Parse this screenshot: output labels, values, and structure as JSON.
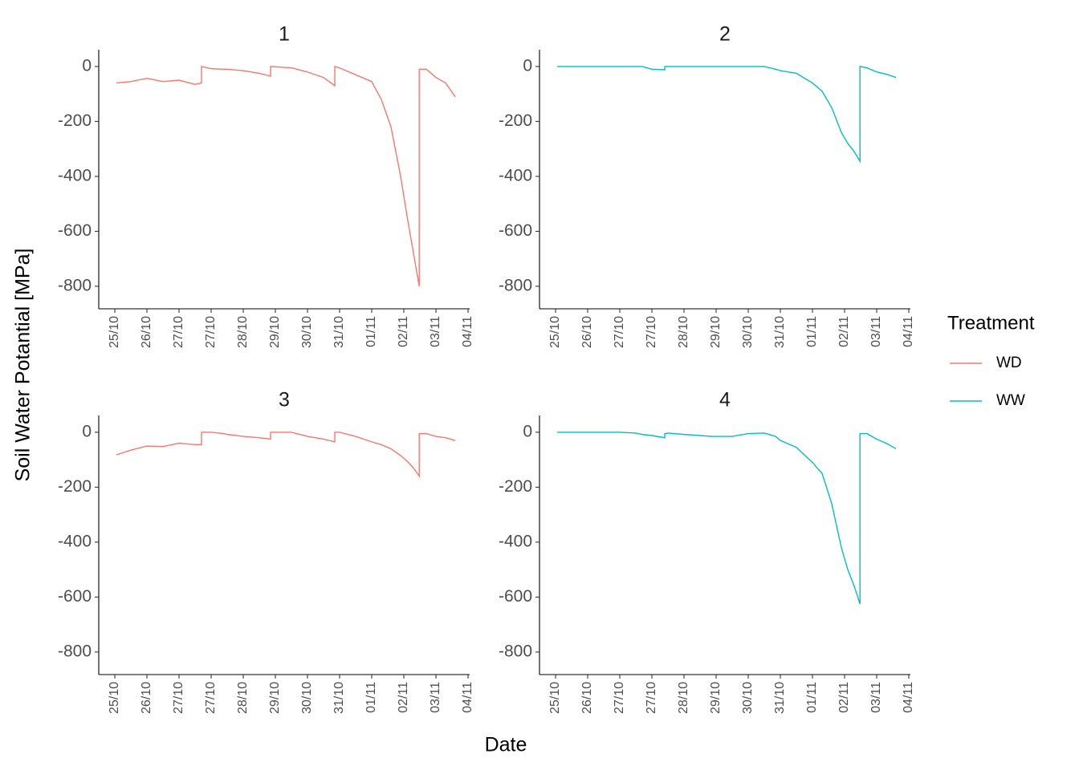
{
  "chart_data": {
    "type": "line",
    "ylabel": "Soil Water Potantial [MPa]",
    "xlabel": "Date",
    "legend_title": "Treatment",
    "x": [
      0.05,
      0.5,
      1.0,
      1.5,
      2.0,
      2.5,
      2.7,
      2.7,
      3.0,
      3.4,
      3.4,
      3.5,
      4.0,
      4.5,
      4.85,
      4.85,
      5.5,
      6.0,
      6.5,
      6.85,
      6.85,
      7.0,
      7.5,
      8.0,
      8.3,
      8.6,
      8.9,
      9.1,
      9.3,
      9.48,
      9.48,
      9.7,
      10.0,
      10.3,
      10.6
    ],
    "xlim": [
      -0.5,
      11.05
    ],
    "xticks": [
      {
        "value": 0,
        "label": "25/10"
      },
      {
        "value": 1,
        "label": "26/10"
      },
      {
        "value": 2,
        "label": "27/10"
      },
      {
        "value": 3,
        "label": "27/10"
      },
      {
        "value": 4,
        "label": "28/10"
      },
      {
        "value": 5,
        "label": "29/10"
      },
      {
        "value": 6,
        "label": "30/10"
      },
      {
        "value": 7,
        "label": "31/10"
      },
      {
        "value": 8,
        "label": "01/11"
      },
      {
        "value": 9,
        "label": "02/11"
      },
      {
        "value": 10,
        "label": "03/11"
      },
      {
        "value": 11,
        "label": "04/11"
      }
    ],
    "ylim": [
      -882,
      61
    ],
    "yticks": [
      -800,
      -600,
      -400,
      -200,
      0
    ],
    "facets": [
      {
        "title": "1",
        "series": [
          {
            "name": "WD",
            "color": "#F8766D",
            "values": [
              -60,
              -55,
              -43,
              -55,
              -50,
              -65,
              -60,
              0,
              -8,
              -10,
              -10,
              -10,
              -15,
              -25,
              -35,
              0,
              -5,
              -20,
              -40,
              -70,
              0,
              -5,
              -30,
              -55,
              -120,
              -220,
              -400,
              -545,
              -680,
              -800,
              -10,
              -10,
              -40,
              -60,
              -110
            ]
          }
        ]
      },
      {
        "title": "2",
        "series": [
          {
            "name": "WW",
            "color": "#00BFC4",
            "values": [
              0,
              0,
              0,
              0,
              0,
              0,
              0,
              0,
              -10,
              -12,
              0,
              0,
              0,
              0,
              0,
              0,
              0,
              0,
              0,
              -10,
              -10,
              -15,
              -25,
              -60,
              -90,
              -150,
              -240,
              -280,
              -310,
              -345,
              0,
              -5,
              -20,
              -28,
              -40
            ]
          }
        ]
      },
      {
        "title": "3",
        "series": [
          {
            "name": "WD",
            "color": "#F8766D",
            "values": [
              -82,
              -65,
              -50,
              -52,
              -40,
              -45,
              -45,
              0,
              0,
              -5,
              -5,
              -8,
              -15,
              -20,
              -25,
              0,
              0,
              -15,
              -25,
              -35,
              0,
              0,
              -15,
              -35,
              -45,
              -60,
              -85,
              -105,
              -130,
              -160,
              -5,
              -5,
              -15,
              -20,
              -30
            ]
          }
        ]
      },
      {
        "title": "4",
        "series": [
          {
            "name": "WW",
            "color": "#00BFC4",
            "values": [
              0,
              0,
              0,
              0,
              0,
              -3,
              -8,
              -8,
              -12,
              -20,
              -5,
              -3,
              -8,
              -12,
              -15,
              -15,
              -15,
              -5,
              -3,
              -15,
              -15,
              -30,
              -55,
              -110,
              -150,
              -260,
              -420,
              -500,
              -560,
              -625,
              -5,
              -5,
              -25,
              -40,
              -60
            ]
          }
        ]
      }
    ]
  }
}
